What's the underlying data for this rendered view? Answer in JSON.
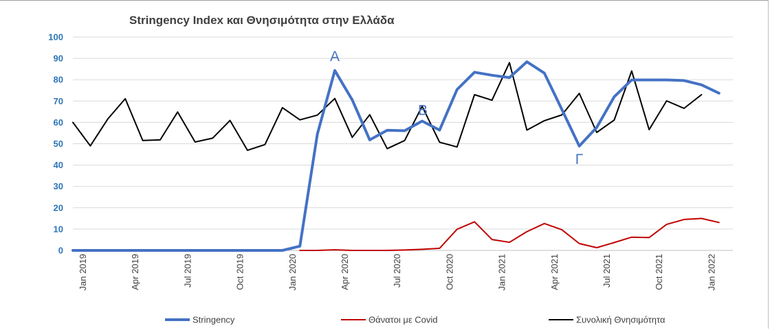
{
  "chart_data": {
    "type": "line",
    "title": "Stringency Index και Θνησιμότητα στην Ελλάδα",
    "ylim": [
      0,
      100
    ],
    "yticks": [
      "0",
      "10",
      "20",
      "30",
      "40",
      "50",
      "60",
      "70",
      "80",
      "90",
      "100"
    ],
    "x": [
      "2019-01",
      "2019-02",
      "2019-03",
      "2019-04",
      "2019-05",
      "2019-06",
      "2019-07",
      "2019-08",
      "2019-09",
      "2019-10",
      "2019-11",
      "2019-12",
      "2020-01",
      "2020-02",
      "2020-03",
      "2020-04",
      "2020-05",
      "2020-06",
      "2020-07",
      "2020-08",
      "2020-09",
      "2020-10",
      "2020-11",
      "2020-12",
      "2021-01",
      "2021-02",
      "2021-03",
      "2021-04",
      "2021-05",
      "2021-06",
      "2021-07",
      "2021-08",
      "2021-09",
      "2021-10",
      "2021-11",
      "2021-12",
      "2022-01",
      "2022-02"
    ],
    "xtick_labels": [
      {
        "x": "2019-01",
        "label": "Jan 2019"
      },
      {
        "x": "2019-04",
        "label": "Apr 2019"
      },
      {
        "x": "2019-07",
        "label": "Jul 2019"
      },
      {
        "x": "2019-10",
        "label": "Oct 2019"
      },
      {
        "x": "2020-01",
        "label": "Jan 2020"
      },
      {
        "x": "2020-04",
        "label": "Apr 2020"
      },
      {
        "x": "2020-07",
        "label": "Jul 2020"
      },
      {
        "x": "2020-10",
        "label": "Oct 2020"
      },
      {
        "x": "2021-01",
        "label": "Jan 2021"
      },
      {
        "x": "2021-04",
        "label": "Apr 2021"
      },
      {
        "x": "2021-07",
        "label": "Jul 2021"
      },
      {
        "x": "2021-10",
        "label": "Oct 2021"
      },
      {
        "x": "2022-01",
        "label": "Jan 2022"
      }
    ],
    "series": [
      {
        "name": "Stringency",
        "color": "#4472c4",
        "values": [
          0,
          0,
          0,
          0,
          0,
          0,
          0,
          0,
          0,
          0,
          0,
          0,
          0,
          2,
          54.5,
          84.3,
          70.5,
          51.8,
          56.3,
          56.1,
          60.6,
          56.4,
          75.4,
          83.5,
          82.1,
          81.0,
          88.4,
          83.1,
          66.1,
          48.9,
          57.7,
          72.0,
          79.9,
          79.9,
          79.9,
          79.6,
          77.6,
          73.7
        ]
      },
      {
        "name": "Θάνατοι με Covid",
        "color": "#c00000",
        "values": [
          null,
          null,
          null,
          null,
          null,
          null,
          null,
          null,
          null,
          null,
          null,
          null,
          null,
          0,
          0,
          0.3,
          0,
          0,
          0,
          0.2,
          0.5,
          1.0,
          9.9,
          13.4,
          5.1,
          3.8,
          8.8,
          12.6,
          9.7,
          3.2,
          1.3,
          3.7,
          6.2,
          6.0,
          12.2,
          14.5,
          15.0,
          13.1
        ]
      },
      {
        "name": "Συνολική Θνησιμότητα",
        "color": "#000000",
        "values": [
          60.0,
          49.0,
          61.6,
          71.1,
          51.5,
          51.8,
          64.9,
          50.8,
          52.6,
          60.9,
          46.9,
          49.6,
          66.9,
          61.2,
          63.4,
          71.2,
          53.0,
          63.6,
          47.7,
          51.5,
          67.6,
          50.7,
          48.5,
          73.0,
          70.4,
          88.0,
          56.4,
          60.8,
          63.5,
          73.6,
          55.3,
          61.1,
          84.1,
          56.6,
          70.1,
          66.6,
          73.0,
          null
        ]
      }
    ],
    "annotations": [
      {
        "text": "Α",
        "x": "2020-04",
        "y": 84.3
      },
      {
        "text": "Β",
        "x": "2020-09",
        "y": 60.6
      },
      {
        "text": "Γ",
        "x": "2021-06",
        "y": 48.9
      }
    ],
    "legend_position": "bottom",
    "grid": true
  }
}
